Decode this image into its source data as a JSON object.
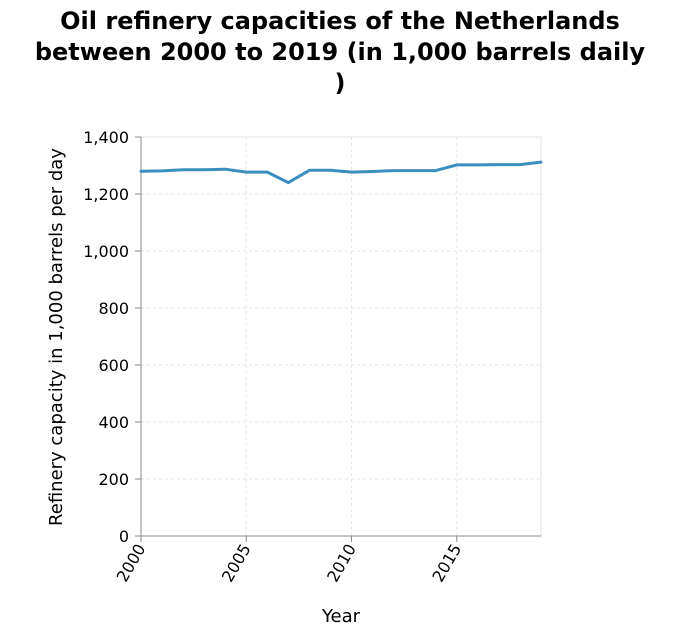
{
  "title_lines": [
    "Oil refinery capacities of the Netherlands",
    "between 2000 to 2019 (in 1,000 barrels daily",
    ")"
  ],
  "chart_data": {
    "type": "line",
    "title": "Oil refinery capacities of the Netherlands between 2000 to 2019 (in 1,000 barrels daily )",
    "xlabel": "Year",
    "ylabel": "Refinery capacity in 1,000 barrels per day",
    "xlim": [
      2000,
      2019
    ],
    "ylim": [
      0,
      1400
    ],
    "x_ticks": [
      2000,
      2005,
      2010,
      2015
    ],
    "x_tick_labels": [
      "2000",
      "2005",
      "2010",
      "2015"
    ],
    "y_ticks": [
      0,
      200,
      400,
      600,
      800,
      1000,
      1200,
      1400
    ],
    "y_tick_labels": [
      "0",
      "200",
      "400",
      "600",
      "800",
      "1,000",
      "1,200",
      "1,400"
    ],
    "grid": true,
    "line_color": "#3a8fc0",
    "series": [
      {
        "x": [
          2000,
          2001,
          2002,
          2003,
          2004,
          2005,
          2006,
          2007,
          2008,
          2009,
          2010,
          2011,
          2012,
          2013,
          2014,
          2015,
          2016,
          2017,
          2018,
          2019
        ],
        "values": [
          1280,
          1281,
          1285,
          1285,
          1287,
          1277,
          1277,
          1240,
          1283,
          1283,
          1277,
          1279,
          1282,
          1282,
          1282,
          1302,
          1302,
          1303,
          1303,
          1312
        ]
      }
    ]
  }
}
